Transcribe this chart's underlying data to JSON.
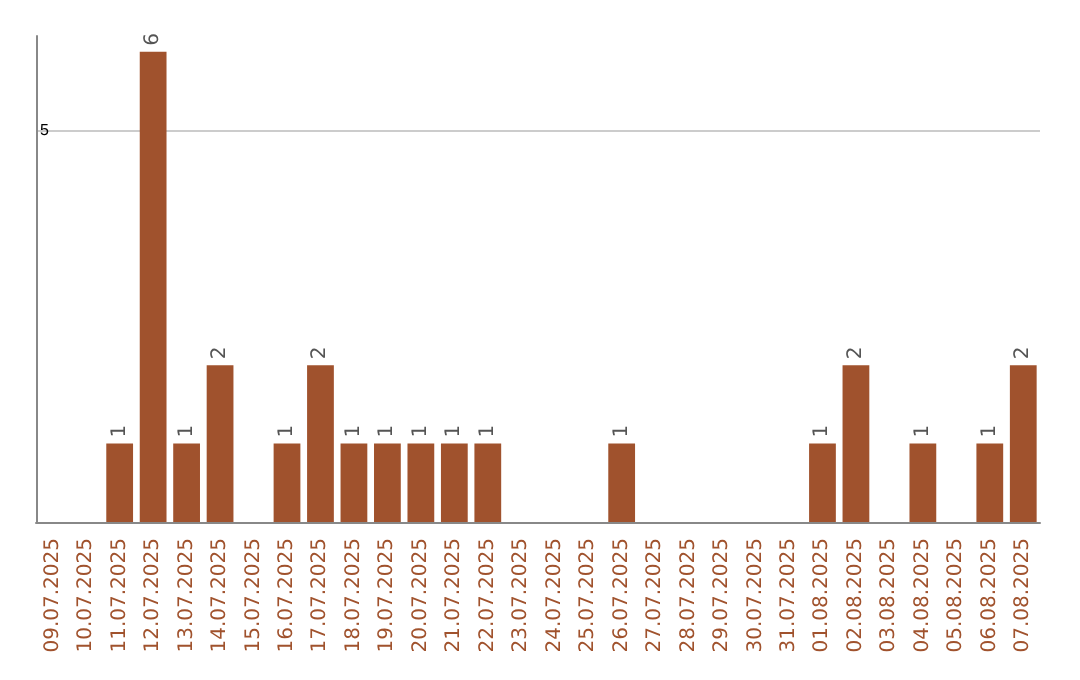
{
  "chart_data": {
    "type": "bar",
    "categories": [
      "09.07.2025",
      "10.07.2025",
      "11.07.2025",
      "12.07.2025",
      "13.07.2025",
      "14.07.2025",
      "15.07.2025",
      "16.07.2025",
      "17.07.2025",
      "18.07.2025",
      "19.07.2025",
      "20.07.2025",
      "21.07.2025",
      "22.07.2025",
      "23.07.2025",
      "24.07.2025",
      "25.07.2025",
      "26.07.2025",
      "27.07.2025",
      "28.07.2025",
      "29.07.2025",
      "30.07.2025",
      "31.07.2025",
      "01.08.2025",
      "02.08.2025",
      "03.08.2025",
      "04.08.2025",
      "05.08.2025",
      "06.08.2025",
      "07.08.2025"
    ],
    "values": [
      0,
      0,
      1,
      6,
      1,
      2,
      0,
      1,
      2,
      1,
      1,
      1,
      1,
      1,
      0,
      0,
      0,
      1,
      0,
      0,
      0,
      0,
      0,
      1,
      2,
      0,
      1,
      0,
      1,
      2
    ],
    "value_labels": [
      null,
      null,
      "1",
      "6",
      "1",
      "2",
      null,
      "1",
      "2",
      "1",
      "1",
      "1",
      "1",
      "1",
      null,
      null,
      null,
      "1",
      null,
      null,
      null,
      null,
      null,
      "1",
      "2",
      null,
      "1",
      null,
      "1",
      "2"
    ],
    "color": "#a0522d",
    "ylim": [
      0,
      6.2
    ],
    "yticks": [
      5
    ],
    "grid": "y"
  }
}
